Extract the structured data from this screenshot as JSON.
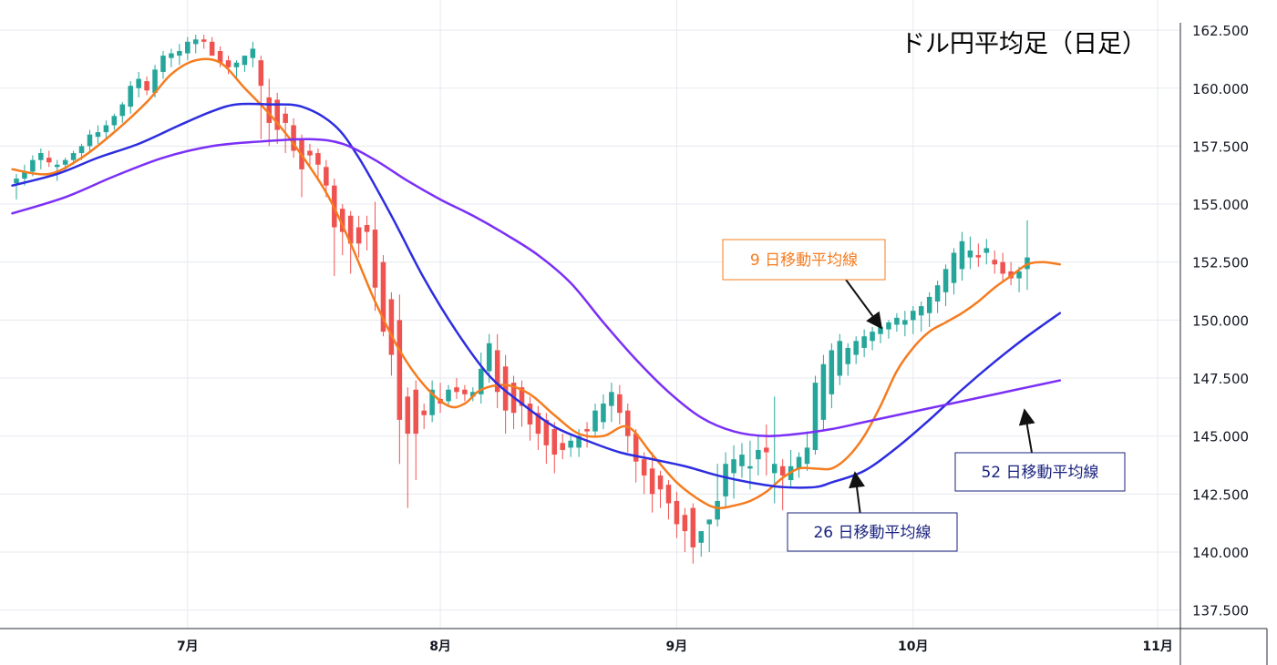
{
  "chart_data": {
    "type": "candlestick",
    "title": "ドル円平均足（日足）",
    "y_axis": {
      "min": 136.7,
      "max": 163.8,
      "ticks": [
        "162.500",
        "160.000",
        "157.500",
        "155.000",
        "152.500",
        "150.000",
        "147.500",
        "145.000",
        "142.500",
        "140.000",
        "137.500"
      ],
      "tick_values": [
        162.5,
        160.0,
        157.5,
        155.0,
        152.5,
        150.0,
        147.5,
        145.0,
        142.5,
        140.0,
        137.5
      ],
      "position": "right"
    },
    "x_axis": {
      "ticks": [
        "7月",
        "8月",
        "9月",
        "10月",
        "11月"
      ],
      "tick_index": [
        21,
        52,
        81,
        110,
        140
      ]
    },
    "grid": true,
    "colors": {
      "up": "#26a69a",
      "down": "#ef5350",
      "ma9": "#f57c1f",
      "ma26": "#2d2de0",
      "ma52": "#7b2ff7"
    },
    "candles": [
      [
        155.9,
        156.3,
        155.2,
        156.1
      ],
      [
        156.1,
        156.7,
        155.8,
        156.4
      ],
      [
        156.4,
        157.1,
        156.2,
        156.9
      ],
      [
        156.9,
        157.4,
        156.5,
        157.2
      ],
      [
        157.0,
        157.3,
        156.6,
        156.8
      ],
      [
        156.6,
        156.9,
        156.0,
        156.7
      ],
      [
        156.7,
        157.0,
        156.4,
        156.9
      ],
      [
        156.9,
        157.3,
        156.7,
        157.2
      ],
      [
        157.2,
        157.6,
        156.9,
        157.5
      ],
      [
        157.5,
        158.2,
        157.2,
        158.0
      ],
      [
        157.9,
        158.4,
        157.6,
        158.1
      ],
      [
        158.1,
        158.6,
        157.8,
        158.4
      ],
      [
        158.4,
        158.9,
        158.2,
        158.8
      ],
      [
        158.8,
        159.4,
        158.5,
        159.3
      ],
      [
        159.2,
        160.3,
        158.9,
        160.1
      ],
      [
        160.0,
        160.7,
        159.6,
        160.4
      ],
      [
        160.3,
        160.5,
        159.7,
        159.9
      ],
      [
        159.8,
        161.0,
        159.6,
        160.8
      ],
      [
        160.7,
        161.6,
        160.4,
        161.4
      ],
      [
        161.3,
        161.7,
        160.9,
        161.5
      ],
      [
        161.4,
        161.9,
        161.0,
        161.6
      ],
      [
        161.5,
        162.2,
        161.2,
        162.0
      ],
      [
        161.9,
        162.3,
        161.5,
        162.1
      ],
      [
        162.1,
        162.3,
        161.7,
        162.0
      ],
      [
        162.0,
        162.2,
        161.5,
        161.4
      ],
      [
        161.6,
        161.8,
        160.9,
        161.1
      ],
      [
        161.2,
        161.4,
        160.6,
        160.9
      ],
      [
        160.9,
        161.2,
        160.4,
        161.1
      ],
      [
        161.0,
        161.3,
        160.7,
        161.4
      ],
      [
        161.3,
        162.0,
        160.9,
        161.7
      ],
      [
        161.2,
        161.4,
        157.8,
        160.1
      ],
      [
        159.6,
        160.4,
        157.5,
        158.5
      ],
      [
        159.5,
        159.8,
        157.6,
        158.2
      ],
      [
        158.9,
        159.2,
        157.2,
        158.5
      ],
      [
        158.4,
        158.7,
        157.0,
        157.3
      ],
      [
        157.8,
        158.0,
        155.3,
        156.5
      ],
      [
        157.3,
        157.6,
        156.6,
        157.1
      ],
      [
        157.2,
        157.4,
        156.0,
        156.7
      ],
      [
        156.6,
        156.9,
        155.3,
        155.8
      ],
      [
        155.8,
        156.1,
        151.9,
        154.0
      ],
      [
        154.8,
        155.0,
        152.8,
        153.8
      ],
      [
        154.5,
        154.7,
        152.0,
        153.3
      ],
      [
        154.0,
        154.5,
        152.7,
        153.3
      ],
      [
        154.1,
        154.5,
        153.0,
        153.8
      ],
      [
        153.9,
        155.1,
        150.4,
        151.4
      ],
      [
        152.5,
        152.8,
        149.3,
        149.5
      ],
      [
        150.9,
        151.2,
        147.6,
        148.5
      ],
      [
        150.0,
        151.1,
        143.8,
        145.7
      ],
      [
        146.7,
        147.1,
        141.9,
        145.1
      ],
      [
        147.0,
        147.4,
        143.1,
        145.1
      ],
      [
        146.1,
        146.4,
        145.3,
        145.9
      ],
      [
        145.9,
        147.4,
        145.6,
        147.0
      ],
      [
        146.6,
        147.3,
        146.0,
        146.4
      ],
      [
        146.5,
        147.2,
        146.3,
        147.0
      ],
      [
        147.1,
        147.5,
        146.6,
        146.9
      ],
      [
        147.0,
        147.2,
        146.5,
        146.8
      ],
      [
        146.7,
        147.1,
        146.5,
        146.9
      ],
      [
        146.8,
        148.6,
        146.4,
        147.9
      ],
      [
        147.8,
        149.4,
        147.3,
        149.0
      ],
      [
        148.7,
        149.4,
        146.2,
        146.9
      ],
      [
        148.0,
        148.5,
        145.1,
        146.1
      ],
      [
        147.3,
        147.6,
        145.3,
        146.0
      ],
      [
        147.1,
        147.4,
        145.4,
        146.3
      ],
      [
        146.4,
        146.7,
        144.8,
        145.5
      ],
      [
        146.0,
        146.3,
        144.4,
        145.1
      ],
      [
        145.7,
        146.0,
        143.8,
        144.6
      ],
      [
        145.3,
        145.6,
        143.4,
        144.2
      ],
      [
        144.7,
        145.1,
        144.0,
        144.4
      ],
      [
        144.5,
        145.0,
        144.1,
        144.8
      ],
      [
        144.5,
        145.3,
        144.1,
        145.0
      ],
      [
        145.3,
        145.6,
        144.5,
        145.2
      ],
      [
        145.2,
        146.4,
        145.0,
        146.1
      ],
      [
        145.6,
        146.8,
        145.3,
        146.4
      ],
      [
        146.3,
        147.3,
        145.6,
        146.9
      ],
      [
        146.8,
        147.2,
        145.5,
        146.0
      ],
      [
        146.1,
        146.4,
        144.3,
        145.0
      ],
      [
        145.1,
        145.3,
        143.0,
        143.9
      ],
      [
        144.0,
        144.3,
        142.5,
        143.3
      ],
      [
        143.6,
        144.3,
        141.7,
        142.5
      ],
      [
        143.3,
        143.5,
        141.9,
        142.7
      ],
      [
        142.9,
        143.1,
        141.4,
        142.1
      ],
      [
        142.2,
        142.6,
        140.6,
        141.2
      ],
      [
        141.6,
        141.9,
        140.0,
        140.9
      ],
      [
        141.9,
        142.1,
        139.5,
        140.2
      ],
      [
        140.4,
        140.7,
        139.8,
        140.9
      ],
      [
        141.2,
        141.4,
        140.0,
        141.4
      ],
      [
        141.4,
        143.8,
        141.1,
        142.2
      ],
      [
        142.4,
        144.3,
        141.9,
        143.8
      ],
      [
        143.4,
        144.6,
        142.3,
        144.0
      ],
      [
        143.7,
        144.7,
        143.2,
        144.2
      ],
      [
        143.6,
        144.8,
        142.7,
        143.7
      ],
      [
        144.0,
        145.0,
        143.3,
        144.4
      ],
      [
        144.5,
        145.5,
        143.3,
        144.3
      ],
      [
        143.4,
        146.7,
        142.1,
        143.8
      ],
      [
        143.7,
        144.0,
        141.8,
        143.3
      ],
      [
        143.1,
        144.4,
        142.8,
        143.7
      ],
      [
        143.6,
        144.3,
        143.2,
        144.1
      ],
      [
        143.8,
        145.2,
        143.5,
        144.5
      ],
      [
        144.4,
        147.6,
        144.2,
        147.3
      ],
      [
        145.7,
        148.5,
        145.2,
        148.1
      ],
      [
        146.8,
        149.0,
        146.2,
        148.7
      ],
      [
        147.6,
        149.4,
        147.2,
        149.1
      ],
      [
        148.1,
        149.0,
        147.6,
        148.8
      ],
      [
        148.5,
        149.3,
        148.1,
        149.1
      ],
      [
        148.8,
        149.6,
        148.4,
        149.3
      ],
      [
        149.1,
        149.7,
        148.7,
        149.5
      ],
      [
        149.4,
        149.9,
        149.0,
        149.7
      ],
      [
        149.6,
        150.0,
        149.2,
        149.9
      ],
      [
        149.8,
        150.3,
        149.5,
        150.1
      ],
      [
        149.8,
        150.4,
        149.3,
        150.0
      ],
      [
        150.0,
        150.6,
        149.4,
        150.4
      ],
      [
        150.2,
        150.8,
        149.5,
        150.6
      ],
      [
        150.3,
        151.2,
        149.7,
        151.0
      ],
      [
        150.8,
        151.7,
        150.3,
        151.5
      ],
      [
        151.2,
        152.4,
        150.6,
        152.2
      ],
      [
        151.6,
        153.1,
        151.1,
        152.9
      ],
      [
        152.2,
        153.8,
        151.7,
        153.4
      ],
      [
        152.7,
        153.6,
        152.2,
        153.0
      ],
      [
        152.8,
        153.3,
        152.3,
        152.7
      ],
      [
        152.9,
        153.5,
        152.4,
        153.1
      ],
      [
        152.6,
        153.0,
        152.0,
        152.4
      ],
      [
        152.5,
        152.9,
        151.6,
        152.0
      ],
      [
        152.1,
        152.5,
        151.5,
        151.8
      ],
      [
        151.8,
        152.3,
        151.2,
        152.1
      ],
      [
        152.2,
        154.3,
        151.3,
        152.7
      ]
    ],
    "series": [
      {
        "name": "9 日移動平均線",
        "points": [
          [
            -0.5,
            156.5
          ],
          [
            4,
            156.3
          ],
          [
            8,
            157.0
          ],
          [
            12,
            158.1
          ],
          [
            16,
            159.4
          ],
          [
            19,
            160.6
          ],
          [
            22,
            161.2
          ],
          [
            25,
            161.1
          ],
          [
            28,
            160.0
          ],
          [
            31,
            158.9
          ],
          [
            34,
            157.6
          ],
          [
            38,
            155.5
          ],
          [
            41,
            153.3
          ],
          [
            44,
            150.8
          ],
          [
            47,
            148.7
          ],
          [
            50,
            147.2
          ],
          [
            53,
            146.3
          ],
          [
            55,
            146.4
          ],
          [
            57,
            147.0
          ],
          [
            60,
            147.2
          ],
          [
            63,
            146.8
          ],
          [
            66,
            145.9
          ],
          [
            69,
            145.1
          ],
          [
            72,
            145.0
          ],
          [
            75,
            145.4
          ],
          [
            78,
            144.2
          ],
          [
            81,
            143.0
          ],
          [
            84,
            142.2
          ],
          [
            86,
            141.9
          ],
          [
            88,
            142.0
          ],
          [
            90,
            142.2
          ],
          [
            92,
            142.6
          ],
          [
            94,
            143.2
          ],
          [
            96,
            143.6
          ],
          [
            98,
            143.6
          ],
          [
            100,
            143.6
          ],
          [
            102,
            144.1
          ],
          [
            104,
            145.0
          ],
          [
            106,
            146.3
          ],
          [
            108,
            147.8
          ],
          [
            110,
            148.8
          ],
          [
            112,
            149.5
          ],
          [
            114,
            149.9
          ],
          [
            116,
            150.3
          ],
          [
            118,
            150.8
          ],
          [
            120,
            151.4
          ],
          [
            122,
            151.9
          ],
          [
            124,
            152.4
          ],
          [
            126,
            152.5
          ],
          [
            128,
            152.4
          ]
        ]
      },
      {
        "name": "26 日移動平均線",
        "points": [
          [
            -0.5,
            155.8
          ],
          [
            5,
            156.3
          ],
          [
            10,
            157.0
          ],
          [
            15,
            157.6
          ],
          [
            20,
            158.4
          ],
          [
            24,
            159.0
          ],
          [
            27,
            159.3
          ],
          [
            31,
            159.3
          ],
          [
            35,
            159.2
          ],
          [
            39,
            158.4
          ],
          [
            42,
            157.0
          ],
          [
            46,
            154.5
          ],
          [
            50,
            151.8
          ],
          [
            54,
            149.5
          ],
          [
            58,
            147.6
          ],
          [
            62,
            146.4
          ],
          [
            66,
            145.4
          ],
          [
            70,
            144.8
          ],
          [
            74,
            144.3
          ],
          [
            78,
            144.0
          ],
          [
            82,
            143.7
          ],
          [
            86,
            143.3
          ],
          [
            90,
            143.0
          ],
          [
            94,
            142.8
          ],
          [
            98,
            142.8
          ],
          [
            100,
            143.0
          ],
          [
            104,
            143.5
          ],
          [
            108,
            144.5
          ],
          [
            112,
            145.7
          ],
          [
            116,
            147.0
          ],
          [
            120,
            148.2
          ],
          [
            124,
            149.3
          ],
          [
            128,
            150.3
          ]
        ]
      },
      {
        "name": "52 日移動平均線",
        "points": [
          [
            -0.5,
            154.6
          ],
          [
            6,
            155.3
          ],
          [
            12,
            156.2
          ],
          [
            18,
            157.0
          ],
          [
            24,
            157.5
          ],
          [
            30,
            157.7
          ],
          [
            36,
            157.8
          ],
          [
            40,
            157.6
          ],
          [
            44,
            156.9
          ],
          [
            48,
            156.0
          ],
          [
            52,
            155.2
          ],
          [
            56,
            154.5
          ],
          [
            60,
            153.7
          ],
          [
            64,
            152.8
          ],
          [
            68,
            151.6
          ],
          [
            72,
            149.9
          ],
          [
            76,
            148.3
          ],
          [
            80,
            146.9
          ],
          [
            84,
            145.8
          ],
          [
            88,
            145.2
          ],
          [
            92,
            145.0
          ],
          [
            96,
            145.1
          ],
          [
            100,
            145.3
          ],
          [
            104,
            145.6
          ],
          [
            108,
            145.9
          ],
          [
            112,
            146.2
          ],
          [
            116,
            146.5
          ],
          [
            120,
            146.8
          ],
          [
            124,
            147.1
          ],
          [
            128,
            147.4
          ]
        ]
      }
    ],
    "annotations": [
      {
        "text": "9 日移動平均線",
        "color": "#f57c1f",
        "border": "#f57c1f"
      },
      {
        "text": "26 日移動平均線",
        "color": "#1a237e",
        "border": "#1a237e"
      },
      {
        "text": "52 日移動平均線",
        "color": "#1a237e",
        "border": "#1a237e"
      }
    ]
  }
}
